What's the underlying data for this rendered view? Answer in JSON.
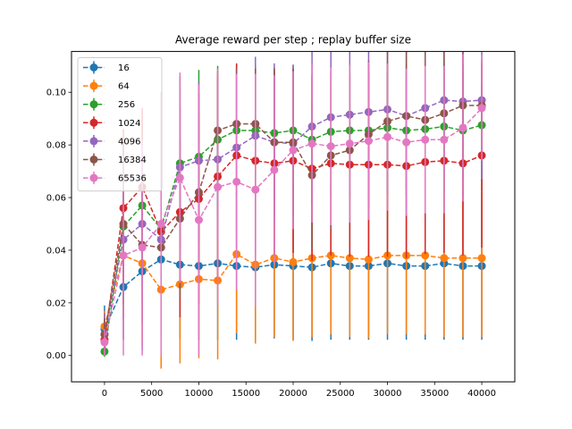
{
  "chart_data": {
    "type": "line",
    "title": "Average reward per step ; replay buffer size",
    "xlabel": "",
    "ylabel": "",
    "xlim": [
      -3500,
      43500
    ],
    "ylim": [
      -0.01,
      0.1155
    ],
    "xticks": [
      0,
      5000,
      10000,
      15000,
      20000,
      25000,
      30000,
      35000,
      40000
    ],
    "xtick_labels": [
      "0",
      "5000",
      "10000",
      "15000",
      "20000",
      "25000",
      "30000",
      "35000",
      "40000"
    ],
    "yticks": [
      0.0,
      0.02,
      0.04,
      0.06,
      0.08,
      0.1
    ],
    "ytick_labels": [
      "0.00",
      "0.02",
      "0.04",
      "0.06",
      "0.08",
      "0.10"
    ],
    "grid": false,
    "legend_position": "top-left",
    "x": [
      0,
      2000,
      4000,
      6000,
      8000,
      10000,
      12000,
      14000,
      16000,
      18000,
      20000,
      22000,
      24000,
      26000,
      28000,
      30000,
      32000,
      34000,
      36000,
      38000,
      40000
    ],
    "series": [
      {
        "name": "16",
        "color": "#1f77b4",
        "values": [
          0.01,
          0.026,
          0.032,
          0.0365,
          0.0345,
          0.034,
          0.035,
          0.034,
          0.0335,
          0.0345,
          0.034,
          0.0335,
          0.035,
          0.034,
          0.034,
          0.035,
          0.034,
          0.034,
          0.035,
          0.034,
          0.034
        ],
        "errors": [
          0.009,
          0.02,
          0.03,
          0.02,
          0.028,
          0.028,
          0.029,
          0.028,
          0.028,
          0.028,
          0.028,
          0.028,
          0.029,
          0.028,
          0.028,
          0.029,
          0.028,
          0.028,
          0.029,
          0.028,
          0.028
        ]
      },
      {
        "name": "64",
        "color": "#ff7f0e",
        "values": [
          0.011,
          0.038,
          0.035,
          0.025,
          0.027,
          0.029,
          0.0285,
          0.0385,
          0.0345,
          0.037,
          0.0355,
          0.037,
          0.038,
          0.037,
          0.0365,
          0.038,
          0.038,
          0.038,
          0.037,
          0.037,
          0.037
        ],
        "errors": [
          0.006,
          0.025,
          0.03,
          0.03,
          0.03,
          0.03,
          0.03,
          0.03,
          0.03,
          0.03,
          0.03,
          0.03,
          0.03,
          0.03,
          0.03,
          0.03,
          0.03,
          0.03,
          0.03,
          0.03,
          0.03
        ]
      },
      {
        "name": "256",
        "color": "#2ca02c",
        "values": [
          0.0015,
          0.049,
          0.057,
          0.048,
          0.073,
          0.0755,
          0.082,
          0.0855,
          0.0855,
          0.0845,
          0.0855,
          0.082,
          0.085,
          0.0855,
          0.0855,
          0.0865,
          0.0855,
          0.086,
          0.087,
          0.0855,
          0.0875
        ],
        "errors": [
          0.002,
          0.03,
          0.03,
          0.044,
          0.033,
          0.033,
          0.028,
          0.025,
          0.025,
          0.025,
          0.025,
          0.025,
          0.025,
          0.025,
          0.025,
          0.025,
          0.025,
          0.025,
          0.025,
          0.025,
          0.025
        ]
      },
      {
        "name": "1024",
        "color": "#d62728",
        "values": [
          0.006,
          0.056,
          0.064,
          0.047,
          0.0545,
          0.0595,
          0.068,
          0.076,
          0.074,
          0.073,
          0.074,
          0.071,
          0.073,
          0.0725,
          0.0725,
          0.0725,
          0.072,
          0.0735,
          0.074,
          0.073,
          0.076
        ],
        "errors": [
          0.006,
          0.03,
          0.03,
          0.04,
          0.04,
          0.04,
          0.04,
          0.035,
          0.035,
          0.035,
          0.035,
          0.035,
          0.035,
          0.035,
          0.035,
          0.035,
          0.035,
          0.035,
          0.035,
          0.035,
          0.035
        ]
      },
      {
        "name": "4096",
        "color": "#9467bd",
        "values": [
          0.008,
          0.044,
          0.05,
          0.044,
          0.0715,
          0.074,
          0.0745,
          0.079,
          0.0835,
          0.081,
          0.0805,
          0.087,
          0.0905,
          0.0915,
          0.0925,
          0.0935,
          0.091,
          0.094,
          0.097,
          0.0965,
          0.097
        ],
        "errors": [
          0.008,
          0.03,
          0.03,
          0.03,
          0.03,
          0.03,
          0.03,
          0.03,
          0.03,
          0.03,
          0.03,
          0.03,
          0.03,
          0.03,
          0.03,
          0.03,
          0.03,
          0.03,
          0.03,
          0.03,
          0.03
        ]
      },
      {
        "name": "16384",
        "color": "#8c564b",
        "values": [
          0.008,
          0.05,
          0.042,
          0.041,
          0.052,
          0.062,
          0.0855,
          0.088,
          0.088,
          0.081,
          0.081,
          0.0685,
          0.076,
          0.078,
          0.084,
          0.089,
          0.091,
          0.0895,
          0.092,
          0.095,
          0.095
        ],
        "errors": [
          0.006,
          0.03,
          0.03,
          0.03,
          0.03,
          0.03,
          0.021,
          0.021,
          0.021,
          0.028,
          0.028,
          0.028,
          0.028,
          0.028,
          0.028,
          0.028,
          0.028,
          0.028,
          0.028,
          0.028,
          0.008
        ]
      },
      {
        "name": "65536",
        "color": "#e377c2",
        "values": [
          0.005,
          0.038,
          0.041,
          0.05,
          0.0675,
          0.0515,
          0.064,
          0.066,
          0.063,
          0.0705,
          0.078,
          0.0805,
          0.0795,
          0.0805,
          0.0815,
          0.083,
          0.081,
          0.082,
          0.082,
          0.0865,
          0.094
        ],
        "errors": [
          0.005,
          0.038,
          0.041,
          0.05,
          0.04,
          0.0515,
          0.045,
          0.041,
          0.044,
          0.036,
          0.03,
          0.03,
          0.03,
          0.03,
          0.03,
          0.028,
          0.028,
          0.028,
          0.028,
          0.028,
          0.02
        ]
      }
    ]
  }
}
